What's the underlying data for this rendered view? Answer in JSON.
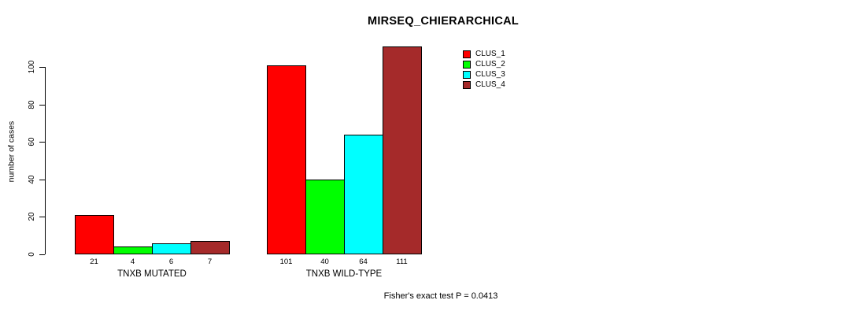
{
  "chart_data": {
    "type": "bar",
    "title": "MIRSEQ_CHIERARCHICAL",
    "categories": [
      "TNXB MUTATED",
      "TNXB WILD-TYPE"
    ],
    "series": [
      {
        "name": "CLUS_1",
        "color": "#FF0000",
        "values": [
          21,
          101
        ]
      },
      {
        "name": "CLUS_2",
        "color": "#00FF00",
        "values": [
          4,
          40
        ]
      },
      {
        "name": "CLUS_3",
        "color": "#00FFFF",
        "values": [
          6,
          64
        ]
      },
      {
        "name": "CLUS_4",
        "color": "#A52A2A",
        "values": [
          7,
          111
        ]
      }
    ],
    "xlabel": "",
    "ylabel": "number of cases",
    "ylim": [
      0,
      100
    ],
    "yticks": [
      0,
      20,
      40,
      60,
      80,
      100
    ],
    "bar_value_labels": [
      [
        21,
        4,
        6,
        7
      ],
      [
        101,
        40,
        64,
        111
      ]
    ],
    "legend_position": "top-right",
    "grid": false,
    "annotation": "Fisher's exact test P = 0.0413"
  }
}
